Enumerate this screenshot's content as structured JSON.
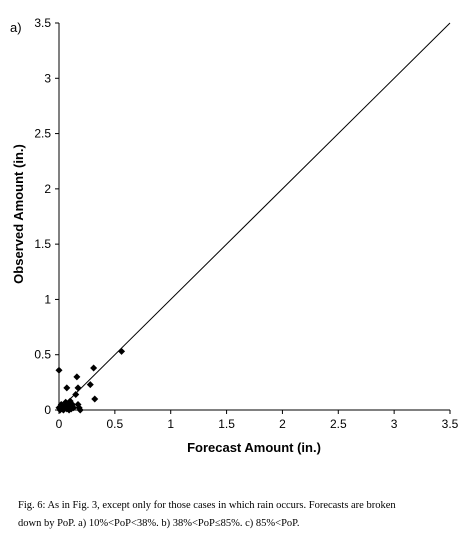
{
  "panel_label": "a)",
  "caption": {
    "line1": "Fig. 6:  As in Fig. 3, except only for those cases in which rain occurs.  Forecasts are broken",
    "line2": "down by PoP.  a)  10%<PoP<38%.  b)  38%<PoP≤85%.  c)  85%<PoP."
  },
  "chart_data": {
    "type": "scatter",
    "title": "",
    "xlabel": "Forecast Amount (in.)",
    "ylabel": "Observed Amount (in.)",
    "xlim": [
      0,
      3.5
    ],
    "ylim": [
      0,
      3.5
    ],
    "xticks": [
      0,
      0.5,
      1,
      1.5,
      2,
      2.5,
      3,
      3.5
    ],
    "yticks": [
      0,
      0.5,
      1,
      1.5,
      2,
      2.5,
      3,
      3.5
    ],
    "tick_labels_x": [
      "0",
      "0.5",
      "1",
      "1.5",
      "2",
      "2.5",
      "3",
      "3.5"
    ],
    "tick_labels_y": [
      "0",
      "0.5",
      "1",
      "1.5",
      "2",
      "2.5",
      "3",
      "3.5"
    ],
    "grid": false,
    "reference_line": {
      "type": "diagonal",
      "from": [
        0,
        0
      ],
      "to": [
        3.5,
        3.5
      ]
    },
    "marker": "diamond",
    "marker_color": "#000000",
    "series": [
      {
        "points": [
          [
            0.0,
            0.36
          ],
          [
            0.0,
            0.02
          ],
          [
            0.01,
            0.0
          ],
          [
            0.02,
            0.05
          ],
          [
            0.03,
            0.01
          ],
          [
            0.04,
            0.0
          ],
          [
            0.05,
            0.03
          ],
          [
            0.06,
            0.07
          ],
          [
            0.07,
            0.2
          ],
          [
            0.07,
            0.01
          ],
          [
            0.08,
            0.05
          ],
          [
            0.09,
            0.0
          ],
          [
            0.1,
            0.08
          ],
          [
            0.1,
            0.03
          ],
          [
            0.11,
            0.01
          ],
          [
            0.12,
            0.05
          ],
          [
            0.13,
            0.02
          ],
          [
            0.15,
            0.14
          ],
          [
            0.16,
            0.3
          ],
          [
            0.17,
            0.2
          ],
          [
            0.17,
            0.05
          ],
          [
            0.18,
            0.02
          ],
          [
            0.19,
            0.0
          ],
          [
            0.28,
            0.23
          ],
          [
            0.31,
            0.38
          ],
          [
            0.32,
            0.1
          ],
          [
            0.56,
            0.53
          ]
        ]
      }
    ]
  }
}
